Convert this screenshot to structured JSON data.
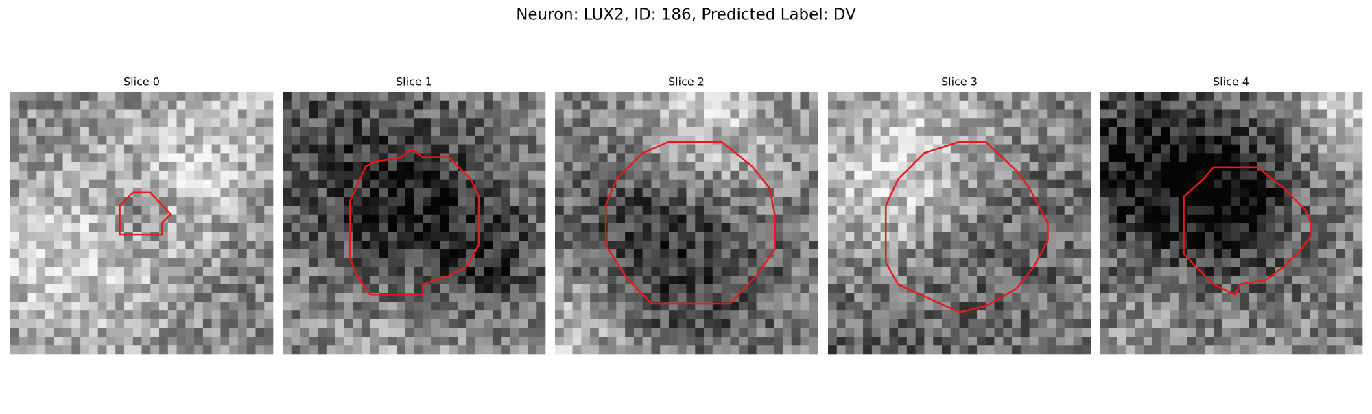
{
  "title": "Neuron: LUX2, ID: 186, Predicted Label: DV",
  "panels": [
    {
      "title": "Slice 0"
    },
    {
      "title": "Slice 1"
    },
    {
      "title": "Slice 2"
    },
    {
      "title": "Slice 3"
    },
    {
      "title": "Slice 4"
    }
  ]
}
